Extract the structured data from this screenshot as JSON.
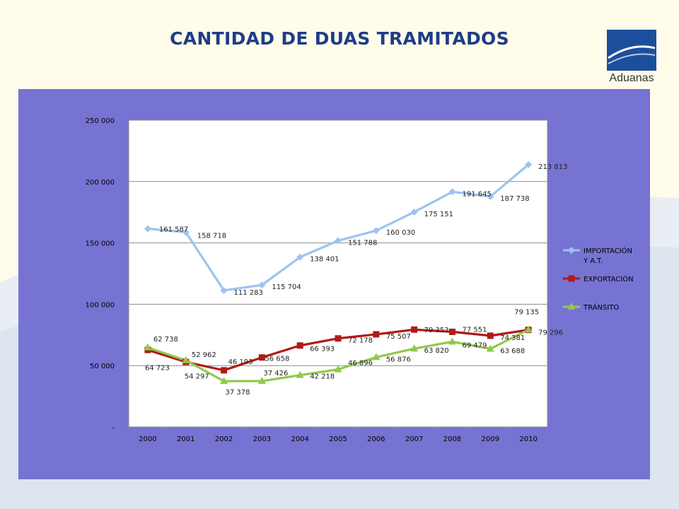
{
  "slide": {
    "title": "CANTIDAD DE DUAS TRAMITADOS",
    "logo_text": "Aduanas",
    "colors": {
      "title": "#1f3d86",
      "panel": "#7673d3",
      "logo": "#1c4f9b"
    }
  },
  "chart_data": {
    "type": "line",
    "title": "",
    "xlabel": "",
    "ylabel": "",
    "categories": [
      "2000",
      "2001",
      "2002",
      "2003",
      "2004",
      "2005",
      "2006",
      "2007",
      "2008",
      "2009",
      "2010"
    ],
    "ylim": [
      0,
      250000
    ],
    "yticks": [
      0,
      50000,
      100000,
      150000,
      200000,
      250000
    ],
    "ytick_labels": [
      "-",
      "50 000",
      "100 000",
      "150 000",
      "200 000",
      "250 000"
    ],
    "grid": true,
    "legend_position": "right",
    "series": [
      {
        "name": "IMPORTACIÓN Y A.T.",
        "legend_lines": [
          "IMPORTACIÓN",
          "Y A.T."
        ],
        "color": "#9dc3ef",
        "marker": "diamond",
        "values": [
          161587,
          158718,
          111283,
          115704,
          138401,
          151788,
          160030,
          175151,
          191645,
          187738,
          213813
        ],
        "labels": [
          "161 587",
          "158 718",
          "111 283",
          "115 704",
          "138 401",
          "151 788",
          "160 030",
          "175 151",
          "191 645",
          "187 738",
          "213 813"
        ]
      },
      {
        "name": "EXPORTACIÓN",
        "legend_lines": [
          "EXPORTACIÓN"
        ],
        "color": "#b01a1a",
        "marker": "square",
        "values": [
          62738,
          52962,
          46193,
          56658,
          66393,
          72178,
          75507,
          79353,
          77551,
          74381,
          79135
        ],
        "labels": [
          "62 738",
          "52 962",
          "46 193",
          "56 658",
          "66 393",
          "72 178",
          "75 507",
          "79 353",
          "77 551",
          "74 381",
          "79 135"
        ]
      },
      {
        "name": "TRÁNSITO",
        "legend_lines": [
          "TRÁNSITO"
        ],
        "color": "#92c84a",
        "marker": "triangle",
        "values": [
          64723,
          54297,
          37378,
          37426,
          42218,
          46896,
          56876,
          63820,
          69479,
          63688,
          79296
        ],
        "labels": [
          "64 723",
          "54 297",
          "37 378",
          "37 426",
          "42 218",
          "46 896",
          "56 876",
          "63 820",
          "69 479",
          "63 688",
          "79 296"
        ]
      }
    ]
  }
}
